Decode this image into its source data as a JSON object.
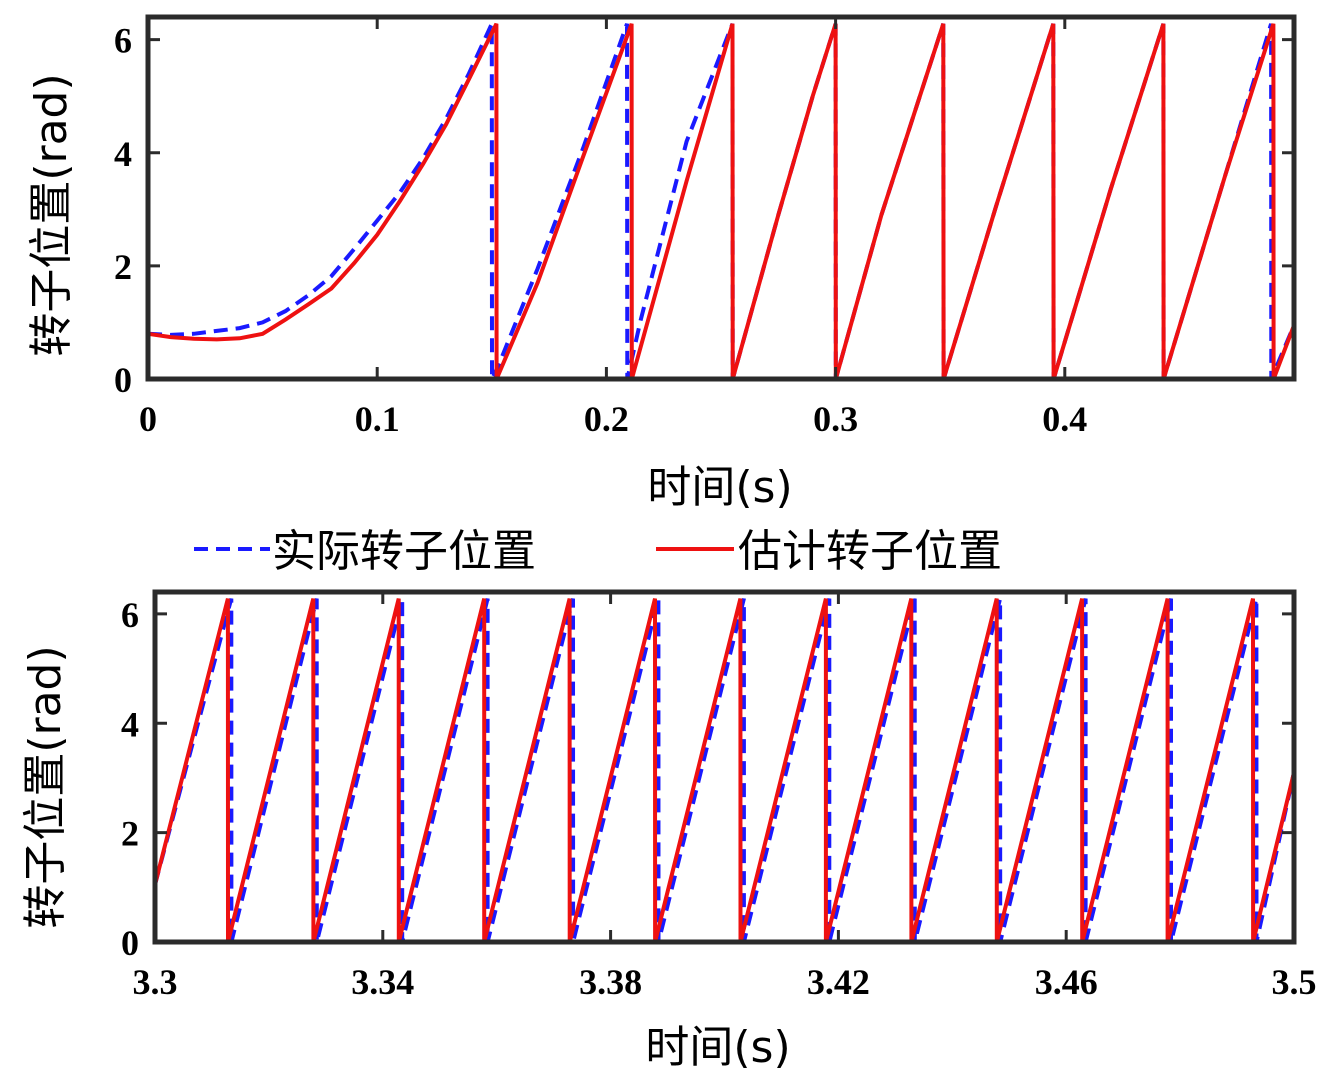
{
  "legend": {
    "actual": "实际转子位置",
    "estimated": "估计转子位置"
  },
  "colors": {
    "actual": "#1a1aff",
    "estimated": "#ee1111",
    "frame": "#2b2b2b"
  },
  "chart_data": [
    {
      "type": "line",
      "xlabel": "时间(s)",
      "ylabel": "转子位置(rad)",
      "xlim": [
        0,
        0.5
      ],
      "ylim": [
        0,
        6.4
      ],
      "xticks": [
        0,
        0.1,
        0.2,
        0.3,
        0.4
      ],
      "xtick_labels": [
        "0",
        "0.1",
        "0.2",
        "0.3",
        "0.4"
      ],
      "yticks": [
        0,
        2,
        4,
        6
      ],
      "ytick_labels": [
        "0",
        "2",
        "4",
        "6"
      ],
      "series": [
        {
          "name": "实际转子位置",
          "style": "dashed",
          "x": [
            0,
            0.01,
            0.02,
            0.03,
            0.04,
            0.05,
            0.06,
            0.07,
            0.08,
            0.09,
            0.1,
            0.11,
            0.12,
            0.13,
            0.14,
            0.15,
            0.1501,
            0.153,
            0.17,
            0.19,
            0.209,
            0.2091,
            0.215,
            0.235,
            0.255,
            0.2551,
            0.275,
            0.29,
            0.3,
            0.3001,
            0.32,
            0.347,
            0.3471,
            0.37,
            0.395,
            0.3951,
            0.42,
            0.443,
            0.4431,
            0.47,
            0.49,
            0.4901,
            0.5
          ],
          "y": [
            0.8,
            0.78,
            0.8,
            0.85,
            0.9,
            1.0,
            1.2,
            1.48,
            1.82,
            2.3,
            2.8,
            3.3,
            3.9,
            4.6,
            5.4,
            6.28,
            0,
            0.25,
            1.95,
            4.1,
            6.28,
            0,
            1.05,
            4.2,
            6.28,
            0,
            2.9,
            5.0,
            6.28,
            0,
            2.9,
            6.28,
            0,
            3.05,
            6.28,
            0,
            3.35,
            6.28,
            0,
            3.6,
            6.28,
            0,
            0.95
          ]
        },
        {
          "name": "估计转子位置",
          "style": "solid",
          "x": [
            0,
            0.01,
            0.02,
            0.03,
            0.04,
            0.05,
            0.06,
            0.07,
            0.08,
            0.09,
            0.1,
            0.11,
            0.12,
            0.13,
            0.14,
            0.152,
            0.1521,
            0.17,
            0.19,
            0.211,
            0.2111,
            0.235,
            0.255,
            0.2551,
            0.275,
            0.29,
            0.3,
            0.3001,
            0.32,
            0.347,
            0.3471,
            0.37,
            0.395,
            0.3951,
            0.42,
            0.443,
            0.4431,
            0.47,
            0.491,
            0.4911,
            0.5
          ],
          "y": [
            0.8,
            0.74,
            0.71,
            0.7,
            0.72,
            0.8,
            1.05,
            1.32,
            1.6,
            2.05,
            2.55,
            3.15,
            3.8,
            4.5,
            5.3,
            6.28,
            0,
            1.7,
            3.95,
            6.28,
            0,
            3.5,
            6.28,
            0,
            2.9,
            5.0,
            6.28,
            0,
            2.9,
            6.28,
            0,
            3.05,
            6.28,
            0,
            3.35,
            6.28,
            0,
            3.6,
            6.28,
            0,
            0.95
          ]
        }
      ]
    },
    {
      "type": "line",
      "xlabel": "时间(s)",
      "ylabel": "转子位置(rad)",
      "xlim": [
        3.3,
        3.5
      ],
      "ylim": [
        0,
        6.4
      ],
      "xticks": [
        3.3,
        3.34,
        3.38,
        3.42,
        3.46,
        3.5
      ],
      "xtick_labels": [
        "3.3",
        "3.34",
        "3.38",
        "3.42",
        "3.46",
        "3.5"
      ],
      "yticks": [
        0,
        2,
        4,
        6
      ],
      "ytick_labels": [
        "0",
        "2",
        "4",
        "6"
      ],
      "wrap_times": [
        3.3128,
        3.3278,
        3.3428,
        3.3578,
        3.3728,
        3.3878,
        3.4028,
        3.4178,
        3.4328,
        3.4478,
        3.4628,
        3.4778,
        3.4928
      ],
      "start_value": 1.05,
      "end_value": 3.1,
      "actual_lag": 0.0006,
      "series": [
        {
          "name": "实际转子位置",
          "style": "dashed"
        },
        {
          "name": "估计转子位置",
          "style": "solid"
        }
      ]
    }
  ]
}
